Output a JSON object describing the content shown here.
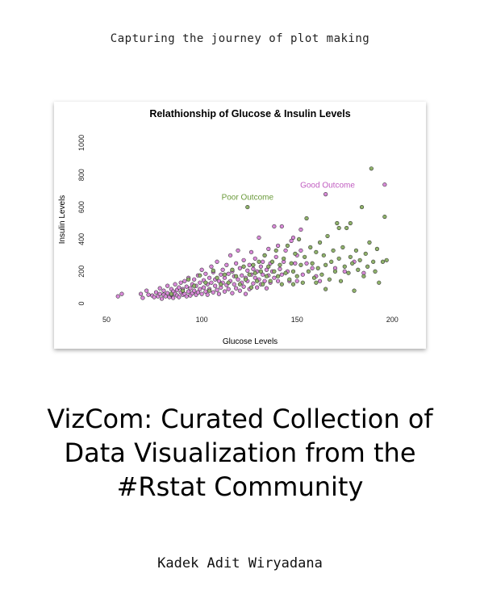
{
  "page": {
    "tagline": "Capturing the journey of plot making",
    "title_lines": [
      "VizCom: Curated Collection of",
      "Data Visualization from the",
      "#Rstat Community"
    ],
    "author": "Kadek Adit Wiryadana"
  },
  "chart_data": {
    "type": "scatter",
    "title": "Relathionship of Glucose & Insulin Levels",
    "xlabel": "Glucose Levels",
    "ylabel": "Insulin Levels",
    "xlim": [
      36,
      213
    ],
    "ylim": [
      -60,
      1080
    ],
    "xticks": [
      50,
      100,
      150,
      200
    ],
    "yticks": [
      0,
      200,
      400,
      600,
      800,
      1000
    ],
    "grid": false,
    "annotations": [
      {
        "text": "Good Outcome",
        "x": 166,
        "y": 720,
        "color": "#c05cc0"
      },
      {
        "text": "Poor Outcome",
        "x": 124,
        "y": 645,
        "color": "#6a9a3a"
      }
    ],
    "series": [
      {
        "name": "Good Outcome",
        "color": "#d98ad9",
        "points": [
          [
            56,
            45
          ],
          [
            68,
            60
          ],
          [
            69,
            35
          ],
          [
            71,
            80
          ],
          [
            72,
            55
          ],
          [
            74,
            50
          ],
          [
            75,
            40
          ],
          [
            76,
            70
          ],
          [
            77,
            45
          ],
          [
            78,
            95
          ],
          [
            78,
            60
          ],
          [
            79,
            30
          ],
          [
            80,
            55
          ],
          [
            80,
            80
          ],
          [
            81,
            45
          ],
          [
            82,
            110
          ],
          [
            82,
            65
          ],
          [
            83,
            40
          ],
          [
            84,
            90
          ],
          [
            84,
            55
          ],
          [
            85,
            75
          ],
          [
            85,
            35
          ],
          [
            86,
            120
          ],
          [
            86,
            60
          ],
          [
            87,
            50
          ],
          [
            87,
            85
          ],
          [
            88,
            100
          ],
          [
            88,
            40
          ],
          [
            89,
            70
          ],
          [
            89,
            130
          ],
          [
            90,
            55
          ],
          [
            90,
            90
          ],
          [
            91,
            60
          ],
          [
            91,
            140
          ],
          [
            92,
            45
          ],
          [
            92,
            105
          ],
          [
            93,
            75
          ],
          [
            93,
            160
          ],
          [
            94,
            50
          ],
          [
            94,
            95
          ],
          [
            95,
            120
          ],
          [
            95,
            65
          ],
          [
            96,
            80
          ],
          [
            96,
            150
          ],
          [
            97,
            55
          ],
          [
            97,
            110
          ],
          [
            98,
            175
          ],
          [
            98,
            70
          ],
          [
            99,
            90
          ],
          [
            99,
            130
          ],
          [
            100,
            60
          ],
          [
            100,
            210
          ],
          [
            101,
            100
          ],
          [
            101,
            145
          ],
          [
            102,
            75
          ],
          [
            102,
            185
          ],
          [
            103,
            120
          ],
          [
            103,
            55
          ],
          [
            104,
            160
          ],
          [
            104,
            90
          ],
          [
            105,
            230
          ],
          [
            105,
            130
          ],
          [
            106,
            70
          ],
          [
            106,
            195
          ],
          [
            107,
            110
          ],
          [
            107,
            150
          ],
          [
            108,
            85
          ],
          [
            108,
            260
          ],
          [
            109,
            140
          ],
          [
            109,
            60
          ],
          [
            110,
            180
          ],
          [
            110,
            100
          ],
          [
            111,
            130
          ],
          [
            111,
            210
          ],
          [
            112,
            75
          ],
          [
            112,
            160
          ],
          [
            113,
            115
          ],
          [
            113,
            240
          ],
          [
            114,
            90
          ],
          [
            114,
            185
          ],
          [
            115,
            140
          ],
          [
            115,
            300
          ],
          [
            116,
            65
          ],
          [
            116,
            200
          ],
          [
            117,
            120
          ],
          [
            117,
            170
          ],
          [
            118,
            95
          ],
          [
            118,
            250
          ],
          [
            119,
            150
          ],
          [
            119,
            330
          ],
          [
            120,
            80
          ],
          [
            120,
            220
          ],
          [
            121,
            130
          ],
          [
            121,
            175
          ],
          [
            122,
            105
          ],
          [
            122,
            270
          ],
          [
            123,
            160
          ],
          [
            123,
            60
          ],
          [
            124,
            205
          ],
          [
            124,
            140
          ],
          [
            125,
            240
          ],
          [
            125,
            90
          ],
          [
            126,
            180
          ],
          [
            126,
            320
          ],
          [
            127,
            125
          ],
          [
            127,
            215
          ],
          [
            128,
            160
          ],
          [
            128,
            280
          ],
          [
            129,
            100
          ],
          [
            129,
            200
          ],
          [
            130,
            150
          ],
          [
            130,
            410
          ],
          [
            131,
            230
          ],
          [
            131,
            120
          ],
          [
            132,
            180
          ],
          [
            132,
            260
          ],
          [
            133,
            140
          ],
          [
            133,
            300
          ],
          [
            134,
            95
          ],
          [
            134,
            210
          ],
          [
            135,
            175
          ],
          [
            135,
            340
          ],
          [
            136,
            250
          ],
          [
            136,
            130
          ],
          [
            137,
            200
          ],
          [
            138,
            160
          ],
          [
            138,
            480
          ],
          [
            139,
            290
          ],
          [
            140,
            140
          ],
          [
            140,
            360
          ],
          [
            141,
            215
          ],
          [
            142,
            180
          ],
          [
            142,
            480
          ],
          [
            143,
            260
          ],
          [
            144,
            330
          ],
          [
            145,
            200
          ],
          [
            146,
            140
          ],
          [
            148,
            410
          ],
          [
            149,
            250
          ],
          [
            150,
            300
          ],
          [
            152,
            330
          ],
          [
            153,
            180
          ],
          [
            155,
            250
          ],
          [
            158,
            220
          ],
          [
            160,
            170
          ],
          [
            162,
            140
          ],
          [
            165,
            680
          ],
          [
            170,
            220
          ],
          [
            175,
            200
          ],
          [
            180,
            260
          ],
          [
            185,
            190
          ],
          [
            196,
            740
          ],
          [
            150,
            140
          ],
          [
            147,
            390
          ],
          [
            152,
            460
          ],
          [
            58,
            60
          ]
        ]
      },
      {
        "name": "Poor Outcome",
        "color": "#8fb26a",
        "points": [
          [
            84,
            60
          ],
          [
            90,
            80
          ],
          [
            93,
            150
          ],
          [
            96,
            110
          ],
          [
            99,
            175
          ],
          [
            102,
            130
          ],
          [
            104,
            80
          ],
          [
            106,
            205
          ],
          [
            108,
            160
          ],
          [
            110,
            120
          ],
          [
            112,
            180
          ],
          [
            114,
            130
          ],
          [
            116,
            210
          ],
          [
            118,
            170
          ],
          [
            120,
            120
          ],
          [
            122,
            230
          ],
          [
            123,
            150
          ],
          [
            124,
            600
          ],
          [
            125,
            180
          ],
          [
            126,
            100
          ],
          [
            127,
            240
          ],
          [
            128,
            190
          ],
          [
            129,
            140
          ],
          [
            130,
            260
          ],
          [
            131,
            200
          ],
          [
            132,
            120
          ],
          [
            133,
            300
          ],
          [
            134,
            170
          ],
          [
            135,
            230
          ],
          [
            136,
            140
          ],
          [
            137,
            260
          ],
          [
            138,
            200
          ],
          [
            139,
            330
          ],
          [
            140,
            170
          ],
          [
            141,
            240
          ],
          [
            142,
            120
          ],
          [
            143,
            280
          ],
          [
            144,
            190
          ],
          [
            145,
            360
          ],
          [
            146,
            150
          ],
          [
            147,
            250
          ],
          [
            148,
            200
          ],
          [
            149,
            310
          ],
          [
            150,
            170
          ],
          [
            151,
            400
          ],
          [
            152,
            240
          ],
          [
            153,
            130
          ],
          [
            154,
            290
          ],
          [
            155,
            530
          ],
          [
            156,
            200
          ],
          [
            157,
            350
          ],
          [
            158,
            250
          ],
          [
            159,
            160
          ],
          [
            160,
            320
          ],
          [
            161,
            220
          ],
          [
            162,
            380
          ],
          [
            163,
            180
          ],
          [
            164,
            300
          ],
          [
            165,
            240
          ],
          [
            166,
            420
          ],
          [
            167,
            150
          ],
          [
            168,
            260
          ],
          [
            169,
            330
          ],
          [
            170,
            200
          ],
          [
            171,
            500
          ],
          [
            172,
            280
          ],
          [
            173,
            140
          ],
          [
            174,
            350
          ],
          [
            175,
            230
          ],
          [
            176,
            470
          ],
          [
            177,
            190
          ],
          [
            178,
            290
          ],
          [
            179,
            250
          ],
          [
            180,
            80
          ],
          [
            181,
            330
          ],
          [
            182,
            210
          ],
          [
            183,
            270
          ],
          [
            184,
            600
          ],
          [
            185,
            170
          ],
          [
            186,
            310
          ],
          [
            187,
            230
          ],
          [
            188,
            380
          ],
          [
            189,
            840
          ],
          [
            190,
            260
          ],
          [
            191,
            200
          ],
          [
            192,
            340
          ],
          [
            193,
            130
          ],
          [
            195,
            260
          ],
          [
            196,
            540
          ],
          [
            197,
            270
          ],
          [
            178,
            500
          ],
          [
            172,
            470
          ],
          [
            160,
            130
          ],
          [
            148,
            120
          ],
          [
            165,
            90
          ]
        ]
      }
    ]
  }
}
